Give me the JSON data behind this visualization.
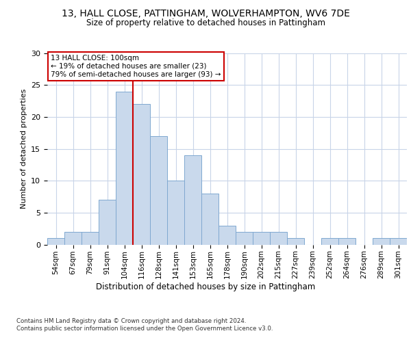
{
  "title": "13, HALL CLOSE, PATTINGHAM, WOLVERHAMPTON, WV6 7DE",
  "subtitle": "Size of property relative to detached houses in Pattingham",
  "xlabel": "Distribution of detached houses by size in Pattingham",
  "ylabel": "Number of detached properties",
  "bar_color": "#c9d9ec",
  "bar_edge_color": "#7fa8d0",
  "bin_labels": [
    "54sqm",
    "67sqm",
    "79sqm",
    "91sqm",
    "104sqm",
    "116sqm",
    "128sqm",
    "141sqm",
    "153sqm",
    "165sqm",
    "178sqm",
    "190sqm",
    "202sqm",
    "215sqm",
    "227sqm",
    "239sqm",
    "252sqm",
    "264sqm",
    "276sqm",
    "289sqm",
    "301sqm"
  ],
  "bar_heights": [
    1,
    2,
    2,
    7,
    24,
    22,
    17,
    10,
    14,
    8,
    3,
    2,
    2,
    2,
    1,
    0,
    1,
    1,
    0,
    1,
    1
  ],
  "ylim": [
    0,
    30
  ],
  "yticks": [
    0,
    5,
    10,
    15,
    20,
    25,
    30
  ],
  "vline_x_index": 4,
  "vline_color": "#cc0000",
  "annotation_text": "13 HALL CLOSE: 100sqm\n← 19% of detached houses are smaller (23)\n79% of semi-detached houses are larger (93) →",
  "footer_line1": "Contains HM Land Registry data © Crown copyright and database right 2024.",
  "footer_line2": "Contains public sector information licensed under the Open Government Licence v3.0.",
  "background_color": "#ffffff",
  "grid_color": "#c8d4e8"
}
